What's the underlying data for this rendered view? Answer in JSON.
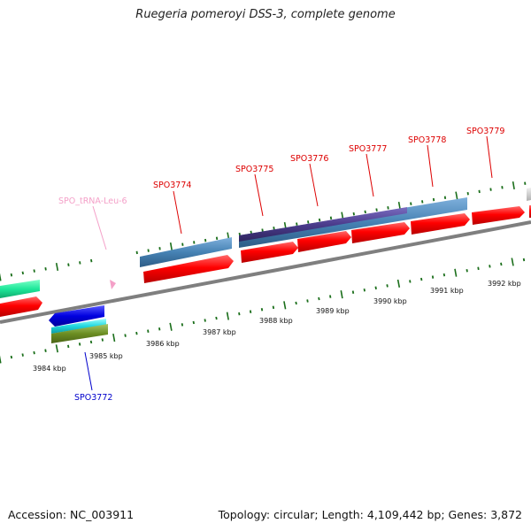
{
  "title": "Ruegeria pomeroyi DSS-3, complete genome",
  "footer": {
    "accession": "Accession: NC_003911",
    "topology": "Topology: circular; Length: 4,109,442 bp; Genes: 3,872"
  },
  "colors": {
    "cds_forward": "#ff0000",
    "cds_forward_label": "#dd0000",
    "cds_reverse_label": "#0000cc",
    "trna_label": "#f4a0c8",
    "tick": "#1a6e1a",
    "backbone": "#7f7f7f",
    "steelblue_track": "#4682b4",
    "purple_track": "#4b3c8c"
  },
  "ruler_labels": [
    "3984 kbp",
    "3985 kbp",
    "3986 kbp",
    "3987 kbp",
    "3988 kbp",
    "3989 kbp",
    "3990 kbp",
    "3991 kbp",
    "3992 kbp"
  ],
  "gene_labels": {
    "trna": "SPO_tRNA-Leu-6",
    "g3772": "SPO3772",
    "g3774": "SPO3774",
    "g3775": "SPO3775",
    "g3776": "SPO3776",
    "g3777": "SPO3777",
    "g3778": "SPO3778",
    "g3779": "SPO3779"
  }
}
